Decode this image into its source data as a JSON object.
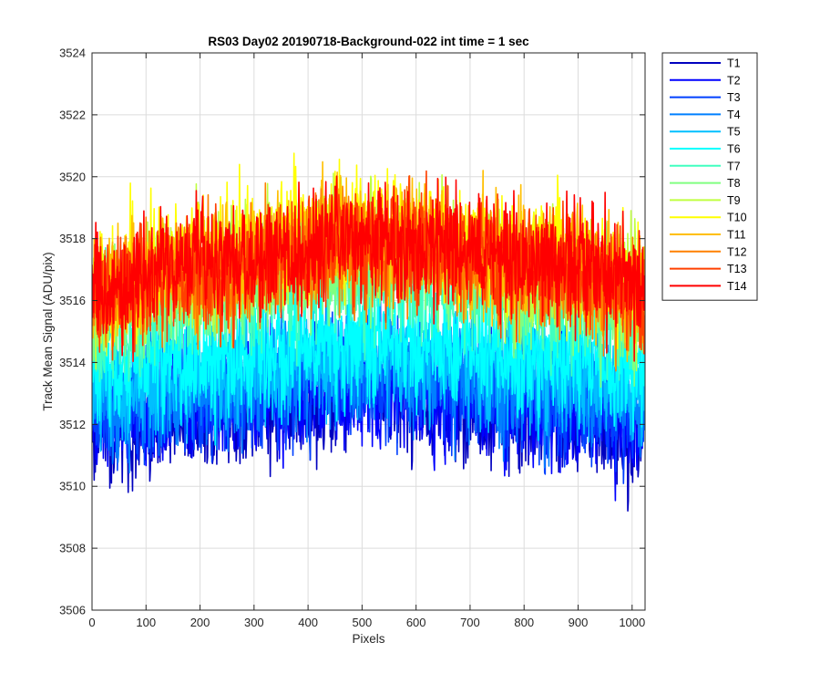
{
  "chart_data": {
    "type": "line",
    "title": "RS03 Day02 20190718-Background-022 int time = 1 sec",
    "xlabel": "Pixels",
    "ylabel": "Track Mean Signal (ADU/pix)",
    "xlim": [
      0,
      1024
    ],
    "ylim": [
      3506,
      3524
    ],
    "xticks": [
      0,
      100,
      200,
      300,
      400,
      500,
      600,
      700,
      800,
      900,
      1000
    ],
    "yticks": [
      3506,
      3508,
      3510,
      3512,
      3514,
      3516,
      3518,
      3520,
      3522,
      3524
    ],
    "grid": true,
    "legend_position": "outside-top-right",
    "num_pixels": 1024,
    "series": [
      {
        "name": "T1",
        "color": "#0000bf",
        "profile": [
          [
            0,
            3511.8
          ],
          [
            150,
            3512.2
          ],
          [
            512,
            3512.9
          ],
          [
            870,
            3512.3
          ],
          [
            1024,
            3511.7
          ]
        ],
        "noise_amplitude": 1.5
      },
      {
        "name": "T2",
        "color": "#0000ff",
        "profile": [
          [
            0,
            3512.1
          ],
          [
            150,
            3512.5
          ],
          [
            512,
            3513.2
          ],
          [
            870,
            3512.6
          ],
          [
            1024,
            3512.0
          ]
        ],
        "noise_amplitude": 1.5
      },
      {
        "name": "T3",
        "color": "#0040ff",
        "profile": [
          [
            0,
            3512.4
          ],
          [
            150,
            3512.8
          ],
          [
            512,
            3513.5
          ],
          [
            870,
            3512.9
          ],
          [
            1024,
            3512.3
          ]
        ],
        "noise_amplitude": 1.5
      },
      {
        "name": "T4",
        "color": "#0080ff",
        "profile": [
          [
            0,
            3512.8
          ],
          [
            150,
            3513.2
          ],
          [
            512,
            3513.9
          ],
          [
            870,
            3513.3
          ],
          [
            1024,
            3512.7
          ]
        ],
        "noise_amplitude": 1.5
      },
      {
        "name": "T5",
        "color": "#00bfff",
        "profile": [
          [
            0,
            3513.2
          ],
          [
            150,
            3513.6
          ],
          [
            512,
            3514.3
          ],
          [
            870,
            3513.7
          ],
          [
            1024,
            3513.1
          ]
        ],
        "noise_amplitude": 1.5
      },
      {
        "name": "T6",
        "color": "#00ffff",
        "profile": [
          [
            0,
            3513.6
          ],
          [
            150,
            3514.0
          ],
          [
            512,
            3514.7
          ],
          [
            870,
            3514.1
          ],
          [
            1024,
            3513.5
          ]
        ],
        "noise_amplitude": 1.5
      },
      {
        "name": "T7",
        "color": "#40ffbf",
        "profile": [
          [
            0,
            3515.0
          ],
          [
            150,
            3515.8
          ],
          [
            512,
            3516.8
          ],
          [
            870,
            3515.9
          ],
          [
            1024,
            3515.2
          ]
        ],
        "noise_amplitude": 1.5
      },
      {
        "name": "T8",
        "color": "#80ff80",
        "profile": [
          [
            0,
            3515.5
          ],
          [
            150,
            3516.3
          ],
          [
            512,
            3517.3
          ],
          [
            870,
            3516.4
          ],
          [
            1024,
            3515.7
          ]
        ],
        "noise_amplitude": 1.5
      },
      {
        "name": "T9",
        "color": "#bfff40",
        "profile": [
          [
            0,
            3516.0
          ],
          [
            150,
            3516.9
          ],
          [
            512,
            3517.9
          ],
          [
            870,
            3517.0
          ],
          [
            1024,
            3516.2
          ]
        ],
        "noise_amplitude": 1.5
      },
      {
        "name": "T10",
        "color": "#ffff00",
        "profile": [
          [
            0,
            3516.4
          ],
          [
            150,
            3517.4
          ],
          [
            512,
            3518.4
          ],
          [
            870,
            3517.5
          ],
          [
            1024,
            3516.6
          ]
        ],
        "noise_amplitude": 1.5
      },
      {
        "name": "T11",
        "color": "#ffbf00",
        "profile": [
          [
            0,
            3516.2
          ],
          [
            150,
            3517.0
          ],
          [
            512,
            3517.9
          ],
          [
            870,
            3517.1
          ],
          [
            1024,
            3516.3
          ]
        ],
        "noise_amplitude": 1.5
      },
      {
        "name": "T12",
        "color": "#ff8000",
        "profile": [
          [
            0,
            3516.0
          ],
          [
            150,
            3516.8
          ],
          [
            512,
            3517.7
          ],
          [
            870,
            3516.9
          ],
          [
            1024,
            3516.1
          ]
        ],
        "noise_amplitude": 1.5
      },
      {
        "name": "T13",
        "color": "#ff4000",
        "profile": [
          [
            0,
            3516.1
          ],
          [
            150,
            3516.9
          ],
          [
            512,
            3517.8
          ],
          [
            870,
            3517.0
          ],
          [
            1024,
            3516.2
          ]
        ],
        "noise_amplitude": 1.5
      },
      {
        "name": "T14",
        "color": "#ff0000",
        "profile": [
          [
            0,
            3516.3
          ],
          [
            150,
            3517.1
          ],
          [
            512,
            3518.0
          ],
          [
            870,
            3517.2
          ],
          [
            1024,
            3516.4
          ]
        ],
        "noise_amplitude": 1.5
      }
    ]
  }
}
